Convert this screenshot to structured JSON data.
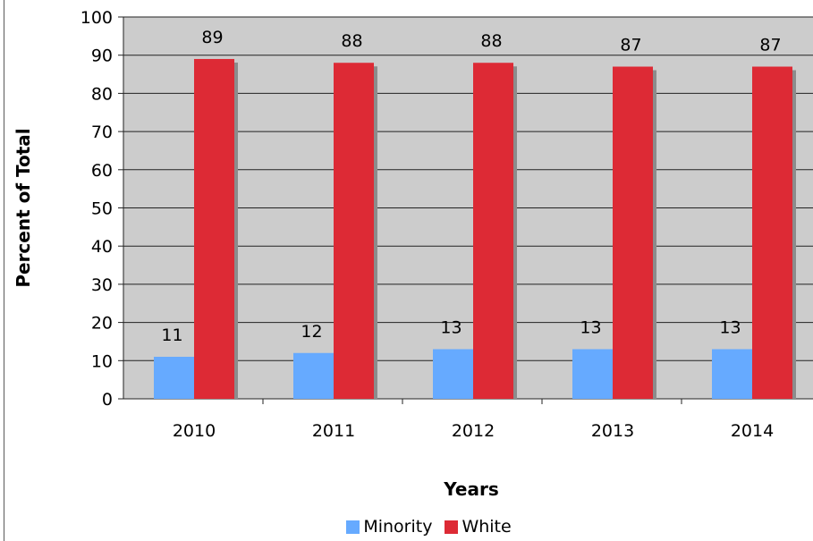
{
  "chart_data": {
    "type": "bar",
    "categories": [
      "2010",
      "2011",
      "2012",
      "2013",
      "2014"
    ],
    "series": [
      {
        "name": "Minority",
        "values": [
          11,
          12,
          13,
          13,
          13
        ],
        "labels": [
          "11",
          "12",
          "13",
          "13",
          "13"
        ],
        "color": "#66aaff"
      },
      {
        "name": "White",
        "values": [
          89,
          88,
          88,
          87,
          87
        ],
        "labels": [
          "89",
          "88",
          "88",
          "87",
          "87"
        ],
        "color": "#dd2a35"
      }
    ],
    "xlabel": "Years",
    "ylabel": "Percent of Total",
    "ylim": [
      0,
      100
    ],
    "yticks": [
      "0",
      "10",
      "20",
      "30",
      "40",
      "50",
      "60",
      "70",
      "80",
      "90",
      "100"
    ],
    "grid": true,
    "plot_background": "#cccccc",
    "legend_position": "bottom"
  },
  "legend": {
    "minority_label": "Minority",
    "white_label": "White"
  }
}
